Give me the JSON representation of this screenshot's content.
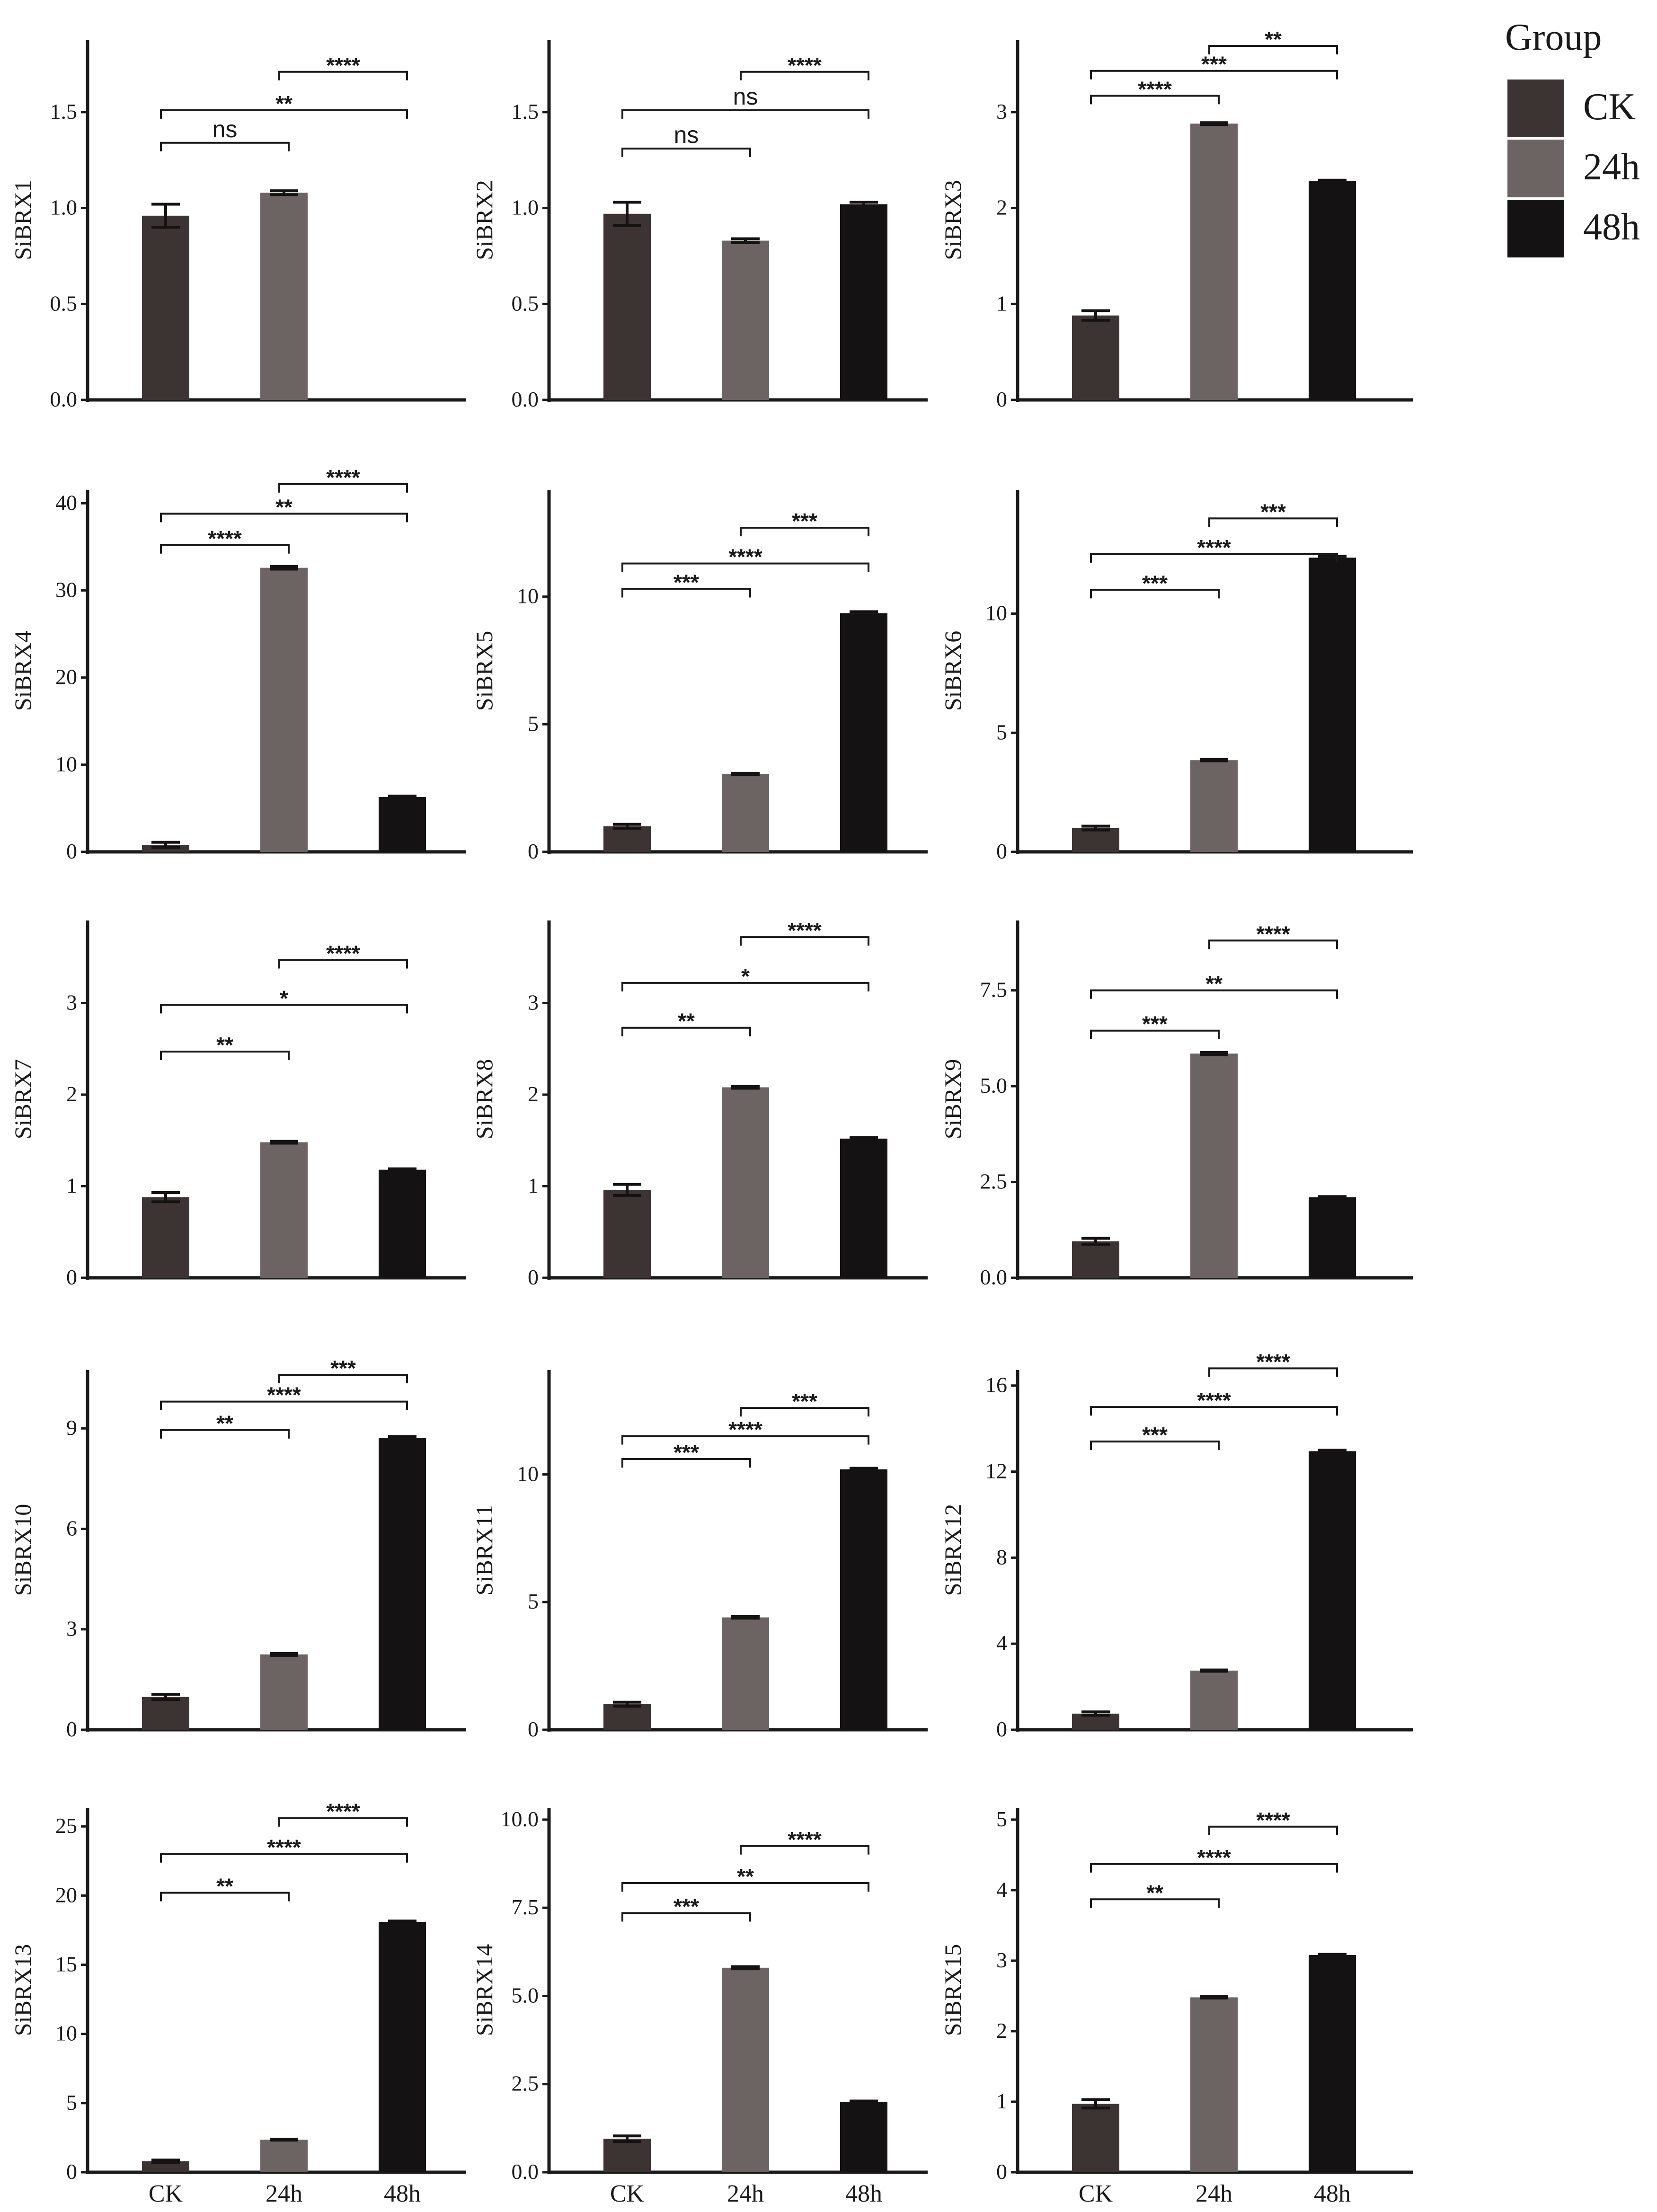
{
  "legend": {
    "title": "Group",
    "entries": [
      {
        "label": "CK",
        "color": "#3b3432"
      },
      {
        "label": "24h",
        "color": "#6b6462"
      },
      {
        "label": "48h",
        "color": "#141212"
      }
    ]
  },
  "colors": {
    "CK": "#3b3432",
    "24h": "#6b6462",
    "48h": "#141212",
    "axis": "#1a1a1a"
  },
  "chart_data": [
    {
      "type": "bar",
      "ylabel": "SiBRX1",
      "categories": [
        "CK",
        "24h",
        "48h"
      ],
      "values": [
        0.96,
        1.08,
        0
      ],
      "errors": [
        0.06,
        0.01,
        0
      ],
      "ylim": [
        0,
        1.85
      ],
      "yticks": [
        0.0,
        0.5,
        1.0,
        1.5
      ],
      "ytick_labels": [
        "0.0",
        "0.5",
        "1.0",
        "1.5"
      ],
      "brackets": [
        {
          "from": 0,
          "to": 1,
          "y": 1.34,
          "label": "ns"
        },
        {
          "from": 0,
          "to": 2,
          "y": 1.51,
          "label": "**"
        },
        {
          "from": 1,
          "to": 2,
          "y": 1.71,
          "label": "****"
        }
      ]
    },
    {
      "type": "bar",
      "ylabel": "SiBRX2",
      "categories": [
        "CK",
        "24h",
        "48h"
      ],
      "values": [
        0.97,
        0.83,
        1.02
      ],
      "errors": [
        0.06,
        0.01,
        0.01
      ],
      "ylim": [
        0,
        1.85
      ],
      "yticks": [
        0.0,
        0.5,
        1.0,
        1.5
      ],
      "ytick_labels": [
        "0.0",
        "0.5",
        "1.0",
        "1.5"
      ],
      "brackets": [
        {
          "from": 0,
          "to": 1,
          "y": 1.31,
          "label": "ns"
        },
        {
          "from": 0,
          "to": 2,
          "y": 1.51,
          "label": "ns"
        },
        {
          "from": 1,
          "to": 2,
          "y": 1.71,
          "label": "****"
        }
      ]
    },
    {
      "type": "bar",
      "ylabel": "SiBRX3",
      "categories": [
        "CK",
        "24h",
        "48h"
      ],
      "values": [
        0.88,
        2.88,
        2.28
      ],
      "errors": [
        0.05,
        0.01,
        0.01
      ],
      "ylim": [
        0,
        3.7
      ],
      "yticks": [
        0,
        1,
        2,
        3
      ],
      "ytick_labels": [
        "0",
        "1",
        "2",
        "3"
      ],
      "brackets": [
        {
          "from": 0,
          "to": 1,
          "y": 3.17,
          "label": "****"
        },
        {
          "from": 0,
          "to": 2,
          "y": 3.43,
          "label": "***"
        },
        {
          "from": 1,
          "to": 2,
          "y": 3.69,
          "label": "**"
        }
      ]
    },
    {
      "type": "bar",
      "ylabel": "SiBRX4",
      "categories": [
        "CK",
        "24h",
        "48h"
      ],
      "values": [
        0.8,
        32.6,
        6.3
      ],
      "errors": [
        0.3,
        0.15,
        0.1
      ],
      "ylim": [
        0,
        41
      ],
      "yticks": [
        0,
        10,
        20,
        30,
        40
      ],
      "ytick_labels": [
        "0",
        "10",
        "20",
        "30",
        "40"
      ],
      "brackets": [
        {
          "from": 0,
          "to": 1,
          "y": 35.2,
          "label": "****"
        },
        {
          "from": 0,
          "to": 2,
          "y": 38.8,
          "label": "**"
        },
        {
          "from": 1,
          "to": 2,
          "y": 42.2,
          "label": "****"
        }
      ]
    },
    {
      "type": "bar",
      "ylabel": "SiBRX5",
      "categories": [
        "CK",
        "24h",
        "48h"
      ],
      "values": [
        1.0,
        3.05,
        9.35
      ],
      "errors": [
        0.08,
        0.03,
        0.06
      ],
      "ylim": [
        0,
        14
      ],
      "yticks": [
        0,
        5,
        10
      ],
      "ytick_labels": [
        "0",
        "5",
        "10"
      ],
      "brackets": [
        {
          "from": 0,
          "to": 1,
          "y": 10.3,
          "label": "***"
        },
        {
          "from": 0,
          "to": 2,
          "y": 11.3,
          "label": "****"
        },
        {
          "from": 1,
          "to": 2,
          "y": 12.7,
          "label": "***"
        }
      ]
    },
    {
      "type": "bar",
      "ylabel": "SiBRX6",
      "categories": [
        "CK",
        "24h",
        "48h"
      ],
      "values": [
        1.0,
        3.85,
        12.35
      ],
      "errors": [
        0.08,
        0.03,
        0.06
      ],
      "ylim": [
        0,
        15
      ],
      "yticks": [
        0,
        5,
        10
      ],
      "ytick_labels": [
        "0",
        "5",
        "10"
      ],
      "brackets": [
        {
          "from": 0,
          "to": 1,
          "y": 11.0,
          "label": "***"
        },
        {
          "from": 0,
          "to": 2,
          "y": 12.5,
          "label": "****"
        },
        {
          "from": 1,
          "to": 2,
          "y": 14.0,
          "label": "***"
        }
      ]
    },
    {
      "type": "bar",
      "ylabel": "SiBRX7",
      "categories": [
        "CK",
        "24h",
        "48h"
      ],
      "values": [
        0.88,
        1.48,
        1.18
      ],
      "errors": [
        0.05,
        0.01,
        0.01
      ],
      "ylim": [
        0,
        3.85
      ],
      "yticks": [
        0,
        1,
        2,
        3
      ],
      "ytick_labels": [
        "0",
        "1",
        "2",
        "3"
      ],
      "brackets": [
        {
          "from": 0,
          "to": 1,
          "y": 2.47,
          "label": "**"
        },
        {
          "from": 0,
          "to": 2,
          "y": 2.98,
          "label": "*"
        },
        {
          "from": 1,
          "to": 2,
          "y": 3.47,
          "label": "****"
        }
      ]
    },
    {
      "type": "bar",
      "ylabel": "SiBRX8",
      "categories": [
        "CK",
        "24h",
        "48h"
      ],
      "values": [
        0.96,
        2.08,
        1.52
      ],
      "errors": [
        0.06,
        0.01,
        0.01
      ],
      "ylim": [
        0,
        3.85
      ],
      "yticks": [
        0,
        1,
        2,
        3
      ],
      "ytick_labels": [
        "0",
        "1",
        "2",
        "3"
      ],
      "brackets": [
        {
          "from": 0,
          "to": 1,
          "y": 2.73,
          "label": "**"
        },
        {
          "from": 0,
          "to": 2,
          "y": 3.22,
          "label": "*"
        },
        {
          "from": 1,
          "to": 2,
          "y": 3.72,
          "label": "****"
        }
      ]
    },
    {
      "type": "bar",
      "ylabel": "SiBRX9",
      "categories": [
        "CK",
        "24h",
        "48h"
      ],
      "values": [
        0.95,
        5.85,
        2.1
      ],
      "errors": [
        0.08,
        0.03,
        0.02
      ],
      "ylim": [
        0,
        9.2
      ],
      "yticks": [
        0.0,
        2.5,
        5.0,
        7.5
      ],
      "ytick_labels": [
        "0.0",
        "2.5",
        "5.0",
        "7.5"
      ],
      "brackets": [
        {
          "from": 0,
          "to": 1,
          "y": 6.45,
          "label": "***"
        },
        {
          "from": 0,
          "to": 2,
          "y": 7.5,
          "label": "**"
        },
        {
          "from": 1,
          "to": 2,
          "y": 8.8,
          "label": "****"
        }
      ]
    },
    {
      "type": "bar",
      "ylabel": "SiBRX10",
      "categories": [
        "CK",
        "24h",
        "48h"
      ],
      "values": [
        0.98,
        2.25,
        8.72
      ],
      "errors": [
        0.08,
        0.03,
        0.04
      ],
      "ylim": [
        0,
        10.6
      ],
      "yticks": [
        0,
        3,
        6,
        9
      ],
      "ytick_labels": [
        "0",
        "3",
        "6",
        "9"
      ],
      "brackets": [
        {
          "from": 0,
          "to": 1,
          "y": 8.95,
          "label": "**"
        },
        {
          "from": 0,
          "to": 2,
          "y": 9.8,
          "label": "****"
        },
        {
          "from": 1,
          "to": 2,
          "y": 10.6,
          "label": "***"
        }
      ]
    },
    {
      "type": "bar",
      "ylabel": "SiBRX11",
      "categories": [
        "CK",
        "24h",
        "48h"
      ],
      "values": [
        1.0,
        4.4,
        10.2
      ],
      "errors": [
        0.08,
        0.03,
        0.04
      ],
      "ylim": [
        0,
        13.9
      ],
      "yticks": [
        0,
        5,
        10
      ],
      "ytick_labels": [
        "0",
        "5",
        "10"
      ],
      "brackets": [
        {
          "from": 0,
          "to": 1,
          "y": 10.6,
          "label": "***"
        },
        {
          "from": 0,
          "to": 2,
          "y": 11.5,
          "label": "****"
        },
        {
          "from": 1,
          "to": 2,
          "y": 12.6,
          "label": "***"
        }
      ]
    },
    {
      "type": "bar",
      "ylabel": "SiBRX12",
      "categories": [
        "CK",
        "24h",
        "48h"
      ],
      "values": [
        0.75,
        2.75,
        12.95
      ],
      "errors": [
        0.08,
        0.03,
        0.05
      ],
      "ylim": [
        0,
        16.5
      ],
      "yticks": [
        0,
        4,
        8,
        12,
        16
      ],
      "ytick_labels": [
        "0",
        "4",
        "8",
        "12",
        "16"
      ],
      "brackets": [
        {
          "from": 0,
          "to": 1,
          "y": 13.4,
          "label": "***"
        },
        {
          "from": 0,
          "to": 2,
          "y": 15.0,
          "label": "****"
        },
        {
          "from": 1,
          "to": 2,
          "y": 16.8,
          "label": "****"
        }
      ]
    },
    {
      "type": "bar",
      "ylabel": "SiBRX13",
      "categories": [
        "CK",
        "24h",
        "48h"
      ],
      "values": [
        0.8,
        2.35,
        18.1
      ],
      "errors": [
        0.08,
        0.03,
        0.06
      ],
      "ylim": [
        0,
        26
      ],
      "yticks": [
        0,
        5,
        10,
        15,
        20,
        25
      ],
      "ytick_labels": [
        "0",
        "5",
        "10",
        "15",
        "20",
        "25"
      ],
      "brackets": [
        {
          "from": 0,
          "to": 1,
          "y": 20.2,
          "label": "**"
        },
        {
          "from": 0,
          "to": 2,
          "y": 23.0,
          "label": "****"
        },
        {
          "from": 1,
          "to": 2,
          "y": 25.6,
          "label": "****"
        }
      ]
    },
    {
      "type": "bar",
      "ylabel": "SiBRX14",
      "categories": [
        "CK",
        "24h",
        "48h"
      ],
      "values": [
        0.95,
        5.8,
        2.0
      ],
      "errors": [
        0.08,
        0.03,
        0.02
      ],
      "ylim": [
        0,
        10.2
      ],
      "yticks": [
        0.0,
        2.5,
        5.0,
        7.5,
        10.0
      ],
      "ytick_labels": [
        "0.0",
        "2.5",
        "5.0",
        "7.5",
        "10.0"
      ],
      "brackets": [
        {
          "from": 0,
          "to": 1,
          "y": 7.35,
          "label": "***"
        },
        {
          "from": 0,
          "to": 2,
          "y": 8.2,
          "label": "**"
        },
        {
          "from": 1,
          "to": 2,
          "y": 9.25,
          "label": "****"
        }
      ]
    },
    {
      "type": "bar",
      "ylabel": "SiBRX15",
      "categories": [
        "CK",
        "24h",
        "48h"
      ],
      "values": [
        0.97,
        2.48,
        3.08
      ],
      "errors": [
        0.06,
        0.01,
        0.01
      ],
      "ylim": [
        0,
        5.1
      ],
      "yticks": [
        0,
        1,
        2,
        3,
        4,
        5
      ],
      "ytick_labels": [
        "0",
        "1",
        "2",
        "3",
        "4",
        "5"
      ],
      "brackets": [
        {
          "from": 0,
          "to": 1,
          "y": 3.87,
          "label": "**"
        },
        {
          "from": 0,
          "to": 2,
          "y": 4.37,
          "label": "****"
        },
        {
          "from": 1,
          "to": 2,
          "y": 4.9,
          "label": "****"
        }
      ]
    }
  ]
}
